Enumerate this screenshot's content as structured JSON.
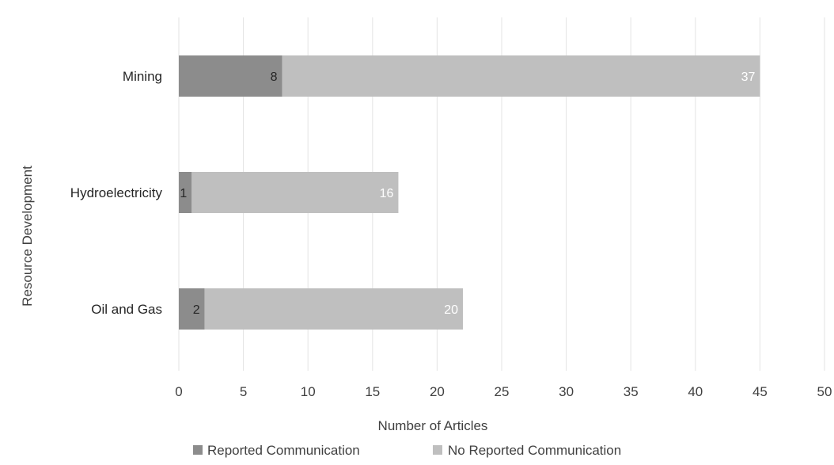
{
  "chart_data": {
    "type": "bar",
    "orientation": "horizontal",
    "stacked": true,
    "categories": [
      "Mining",
      "Hydroelectricity",
      "Oil and Gas"
    ],
    "series": [
      {
        "name": "Reported Communication",
        "values": [
          8,
          1,
          2
        ],
        "color": "#8c8c8c",
        "label_color": "#262626"
      },
      {
        "name": "No Reported Communication",
        "values": [
          37,
          16,
          20
        ],
        "color": "#bfbfbf",
        "label_color": "#ffffff"
      }
    ],
    "xlim": [
      0,
      50
    ],
    "xticks": [
      "0",
      "5",
      "10",
      "15",
      "20",
      "25",
      "30",
      "35",
      "40",
      "45",
      "50"
    ],
    "xlabel": "Number of Articles",
    "ylabel": "Resource Development",
    "grid": "vertical",
    "legend": "bottom"
  }
}
